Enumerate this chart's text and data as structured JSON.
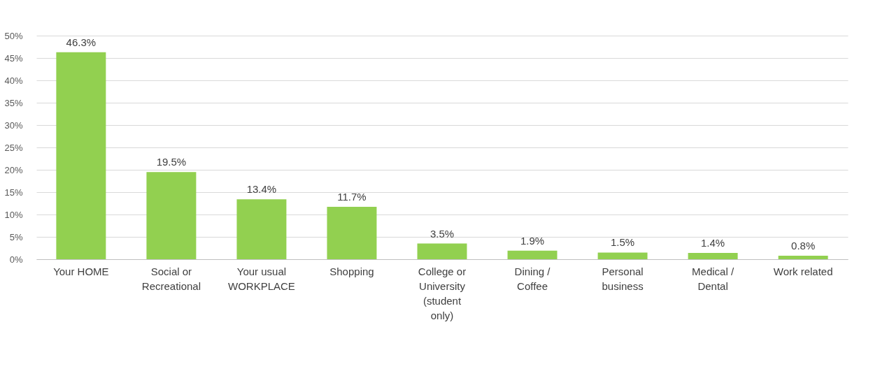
{
  "chart_data": {
    "type": "bar",
    "categories": [
      "Your HOME",
      "Social or Recreational",
      "Your usual WORKPLACE",
      "Shopping",
      "College or University (student only)",
      "Dining / Coffee",
      "Personal business",
      "Medical / Dental",
      "Work related"
    ],
    "values": [
      46.3,
      19.5,
      13.4,
      11.7,
      3.5,
      1.9,
      1.5,
      1.4,
      0.8
    ],
    "value_labels": [
      "46.3%",
      "19.5%",
      "13.4%",
      "11.7%",
      "3.5%",
      "1.9%",
      "1.5%",
      "1.4%",
      "0.8%"
    ],
    "color": "#92d050",
    "ylim": [
      0,
      50
    ],
    "yticks": [
      {
        "value": 0,
        "label": "0%"
      },
      {
        "value": 5,
        "label": "5%"
      },
      {
        "value": 10,
        "label": "10%"
      },
      {
        "value": 15,
        "label": "15%"
      },
      {
        "value": 20,
        "label": "20%"
      },
      {
        "value": 25,
        "label": "25%"
      },
      {
        "value": 30,
        "label": "30%"
      },
      {
        "value": 35,
        "label": "35%"
      },
      {
        "value": 40,
        "label": "40%"
      },
      {
        "value": 45,
        "label": "45%"
      },
      {
        "value": 50,
        "label": "50%"
      }
    ],
    "grid": "y"
  }
}
